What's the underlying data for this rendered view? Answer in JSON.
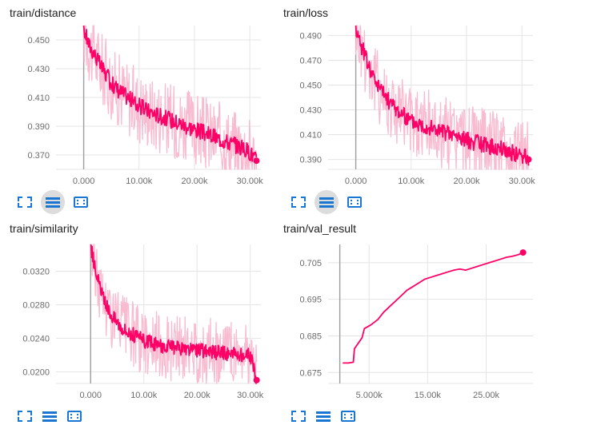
{
  "colors": {
    "raw": "#f8bbd0",
    "smoothed": "#ff0066",
    "grid": "#e4e4e4",
    "axis": "#9e9e9e",
    "icon": "#1976d2"
  },
  "toolbar_icons": [
    "expand-icon",
    "toggle-lines-icon",
    "fit-domain-icon"
  ],
  "chart_data": [
    {
      "type": "line",
      "title": "train/distance",
      "xlim": [
        -5000,
        32000
      ],
      "ylim": [
        0.36,
        0.46
      ],
      "x_ticks": [
        0,
        10000,
        20000,
        30000
      ],
      "x_tick_labels": [
        "0.000",
        "10.00k",
        "20.00k",
        "30.00k"
      ],
      "y_ticks": [
        0.37,
        0.39,
        0.41,
        0.43,
        0.45
      ],
      "y_tick_labels": [
        "0.370",
        "0.390",
        "0.410",
        "0.430",
        "0.450"
      ],
      "series": [
        {
          "x": [
            0,
            1000,
            2000,
            3000,
            4000,
            5000,
            6000,
            7000,
            8000,
            9000,
            10000,
            12000,
            14000,
            16000,
            18000,
            20000,
            22000,
            24000,
            26000,
            28000,
            30000,
            31200
          ],
          "y": [
            0.458,
            0.446,
            0.44,
            0.432,
            0.426,
            0.42,
            0.416,
            0.413,
            0.41,
            0.407,
            0.404,
            0.4,
            0.397,
            0.394,
            0.391,
            0.388,
            0.385,
            0.382,
            0.379,
            0.376,
            0.372,
            0.366
          ]
        }
      ],
      "raw_spread": 0.026
    },
    {
      "type": "line",
      "title": "train/loss",
      "xlim": [
        -5000,
        32000
      ],
      "ylim": [
        0.382,
        0.498
      ],
      "x_ticks": [
        0,
        10000,
        20000,
        30000
      ],
      "x_tick_labels": [
        "0.000",
        "10.00k",
        "20.00k",
        "30.00k"
      ],
      "y_ticks": [
        0.39,
        0.41,
        0.43,
        0.45,
        0.47,
        0.49
      ],
      "y_tick_labels": [
        "0.390",
        "0.410",
        "0.430",
        "0.450",
        "0.470",
        "0.490"
      ],
      "series": [
        {
          "x": [
            0,
            1000,
            2000,
            3000,
            4000,
            5000,
            6000,
            7000,
            8000,
            9000,
            10000,
            12000,
            14000,
            16000,
            18000,
            20000,
            22000,
            24000,
            26000,
            28000,
            30000,
            31200
          ],
          "y": [
            0.497,
            0.482,
            0.47,
            0.458,
            0.45,
            0.443,
            0.437,
            0.432,
            0.428,
            0.424,
            0.421,
            0.418,
            0.415,
            0.412,
            0.409,
            0.406,
            0.403,
            0.401,
            0.399,
            0.396,
            0.393,
            0.39
          ]
        }
      ],
      "raw_spread": 0.03
    },
    {
      "type": "line",
      "title": "train/similarity",
      "xlim": [
        -6500,
        32000
      ],
      "ylim": [
        0.0186,
        0.0352
      ],
      "x_ticks": [
        0,
        10000,
        20000,
        30000
      ],
      "x_tick_labels": [
        "0.000",
        "10.00k",
        "20.00k",
        "30.00k"
      ],
      "y_ticks": [
        0.02,
        0.024,
        0.028,
        0.032
      ],
      "y_tick_labels": [
        "0.0200",
        "0.0240",
        "0.0280",
        "0.0320"
      ],
      "series": [
        {
          "x": [
            0,
            1000,
            2000,
            3000,
            4000,
            5000,
            6000,
            7000,
            8000,
            9000,
            10000,
            12000,
            14000,
            16000,
            18000,
            20000,
            22000,
            24000,
            26000,
            28000,
            30000,
            31200
          ],
          "y": [
            0.035,
            0.032,
            0.0295,
            0.0278,
            0.0268,
            0.026,
            0.0253,
            0.0248,
            0.0244,
            0.024,
            0.0237,
            0.0233,
            0.023,
            0.0228,
            0.0226,
            0.0225,
            0.0224,
            0.0223,
            0.0222,
            0.0221,
            0.022,
            0.019
          ]
        }
      ],
      "raw_spread": 0.004
    },
    {
      "type": "line",
      "title": "train/val_result",
      "xlim": [
        -2000,
        33000
      ],
      "ylim": [
        0.672,
        0.71
      ],
      "x_ticks": [
        5000,
        15000,
        25000
      ],
      "x_tick_labels": [
        "5.000k",
        "15.00k",
        "25.00k"
      ],
      "y_ticks": [
        0.675,
        0.685,
        0.695,
        0.705
      ],
      "y_tick_labels": [
        "0.675",
        "0.685",
        "0.695",
        "0.705"
      ],
      "series": [
        {
          "x": [
            500,
            1500,
            2300,
            2500,
            3800,
            4200,
            5300,
            6500,
            7500,
            8500,
            9500,
            10500,
            11500,
            12500,
            13500,
            14500,
            15500,
            16500,
            17500,
            18500,
            19500,
            20500,
            21500,
            22500,
            23500,
            24500,
            25500,
            26500,
            27500,
            28500,
            29500,
            30500,
            31300
          ],
          "y": [
            0.6776,
            0.6776,
            0.6778,
            0.6815,
            0.6845,
            0.687,
            0.688,
            0.6895,
            0.6915,
            0.693,
            0.6945,
            0.696,
            0.6975,
            0.6985,
            0.6995,
            0.7005,
            0.701,
            0.7015,
            0.702,
            0.7025,
            0.703,
            0.7033,
            0.703,
            0.7035,
            0.704,
            0.7045,
            0.705,
            0.7055,
            0.706,
            0.7065,
            0.7068,
            0.7072,
            0.7078
          ]
        }
      ],
      "raw_spread": 0
    }
  ]
}
